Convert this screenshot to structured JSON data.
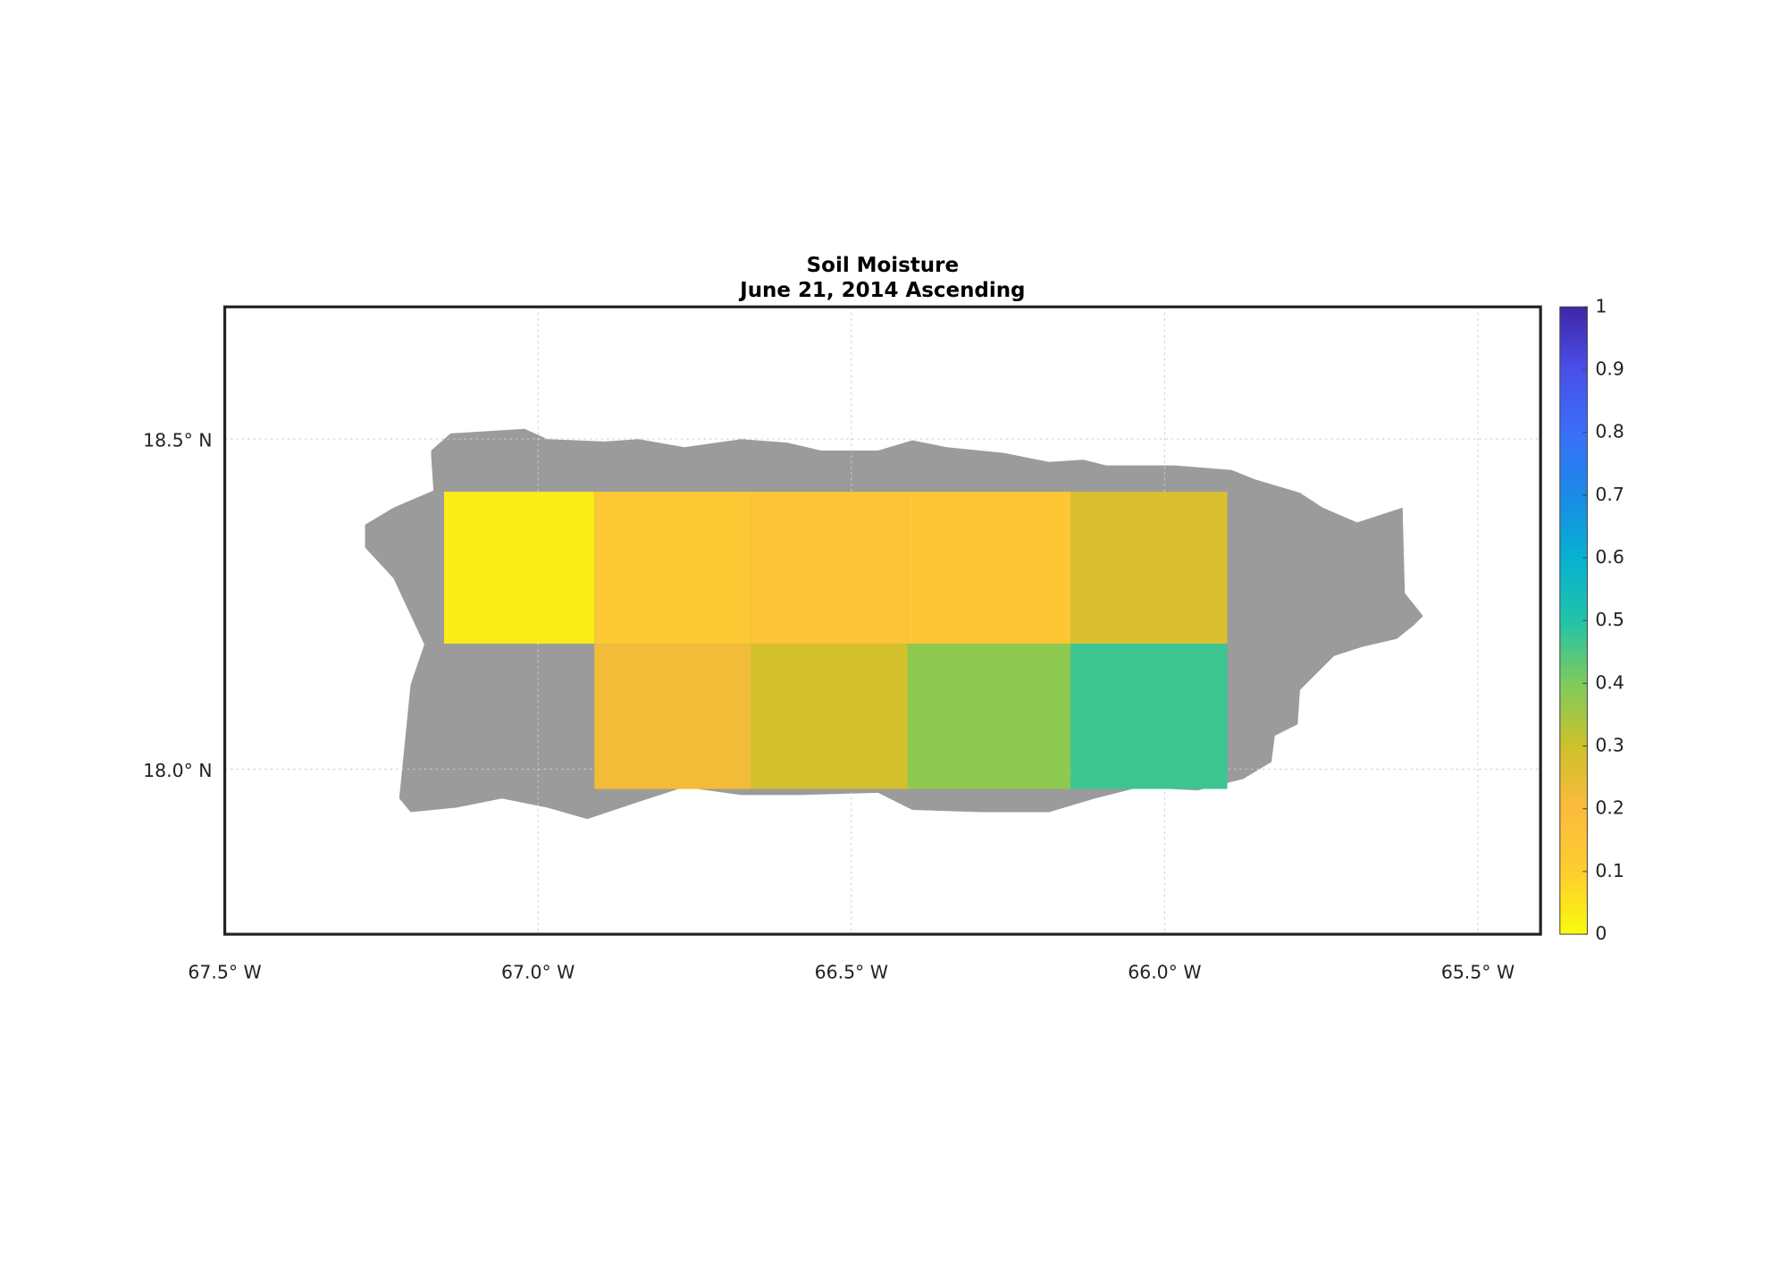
{
  "chart_data": {
    "type": "gridmap",
    "title": "Soil Moisture",
    "subtitle": "June 21, 2014 Ascending",
    "xlim": [
      -67.5,
      -65.4
    ],
    "ylim": [
      17.75,
      18.7
    ],
    "xticks": [
      {
        "value": -67.5,
        "label": "67.5° W"
      },
      {
        "value": -67.0,
        "label": "67.0° W"
      },
      {
        "value": -66.5,
        "label": "66.5° W"
      },
      {
        "value": -66.0,
        "label": "66.0° W"
      },
      {
        "value": -65.5,
        "label": "65.5° W"
      }
    ],
    "yticks": [
      {
        "value": 18.0,
        "label": "18.0° N"
      },
      {
        "value": 18.5,
        "label": "18.5° N"
      }
    ],
    "grid": true,
    "land_color": "#9b9b9b",
    "clim": [
      0,
      1
    ],
    "cticks": [
      0,
      0.1,
      0.2,
      0.3,
      0.4,
      0.5,
      0.6,
      0.7,
      0.8,
      0.9,
      1
    ],
    "colormap": [
      "#f9fb0e",
      "#fdcd2f",
      "#fbbb3c",
      "#cdc12b",
      "#7ecb5c",
      "#21c3a8",
      "#06b1d1",
      "#1a8ae6",
      "#3a6ffa",
      "#4a4fe8",
      "#3e26a8"
    ],
    "cells": [
      {
        "lon": [
          -67.15,
          -66.91
        ],
        "lat": [
          18.19,
          18.42
        ],
        "value": 0.03
      },
      {
        "lon": [
          -66.91,
          -66.66
        ],
        "lat": [
          18.19,
          18.42
        ],
        "value": 0.13
      },
      {
        "lon": [
          -66.66,
          -66.41
        ],
        "lat": [
          18.19,
          18.42
        ],
        "value": 0.15
      },
      {
        "lon": [
          -66.41,
          -66.15
        ],
        "lat": [
          18.19,
          18.42
        ],
        "value": 0.14
      },
      {
        "lon": [
          -66.15,
          -65.9
        ],
        "lat": [
          18.19,
          18.42
        ],
        "value": 0.27
      },
      {
        "lon": [
          -66.91,
          -66.66
        ],
        "lat": [
          17.97,
          18.19
        ],
        "value": 0.22
      },
      {
        "lon": [
          -66.66,
          -66.41
        ],
        "lat": [
          17.97,
          18.19
        ],
        "value": 0.29
      },
      {
        "lon": [
          -66.41,
          -66.15
        ],
        "lat": [
          17.97,
          18.19
        ],
        "value": 0.38
      },
      {
        "lon": [
          -66.15,
          -65.9
        ],
        "lat": [
          17.97,
          18.19
        ],
        "value": 0.47
      }
    ]
  }
}
